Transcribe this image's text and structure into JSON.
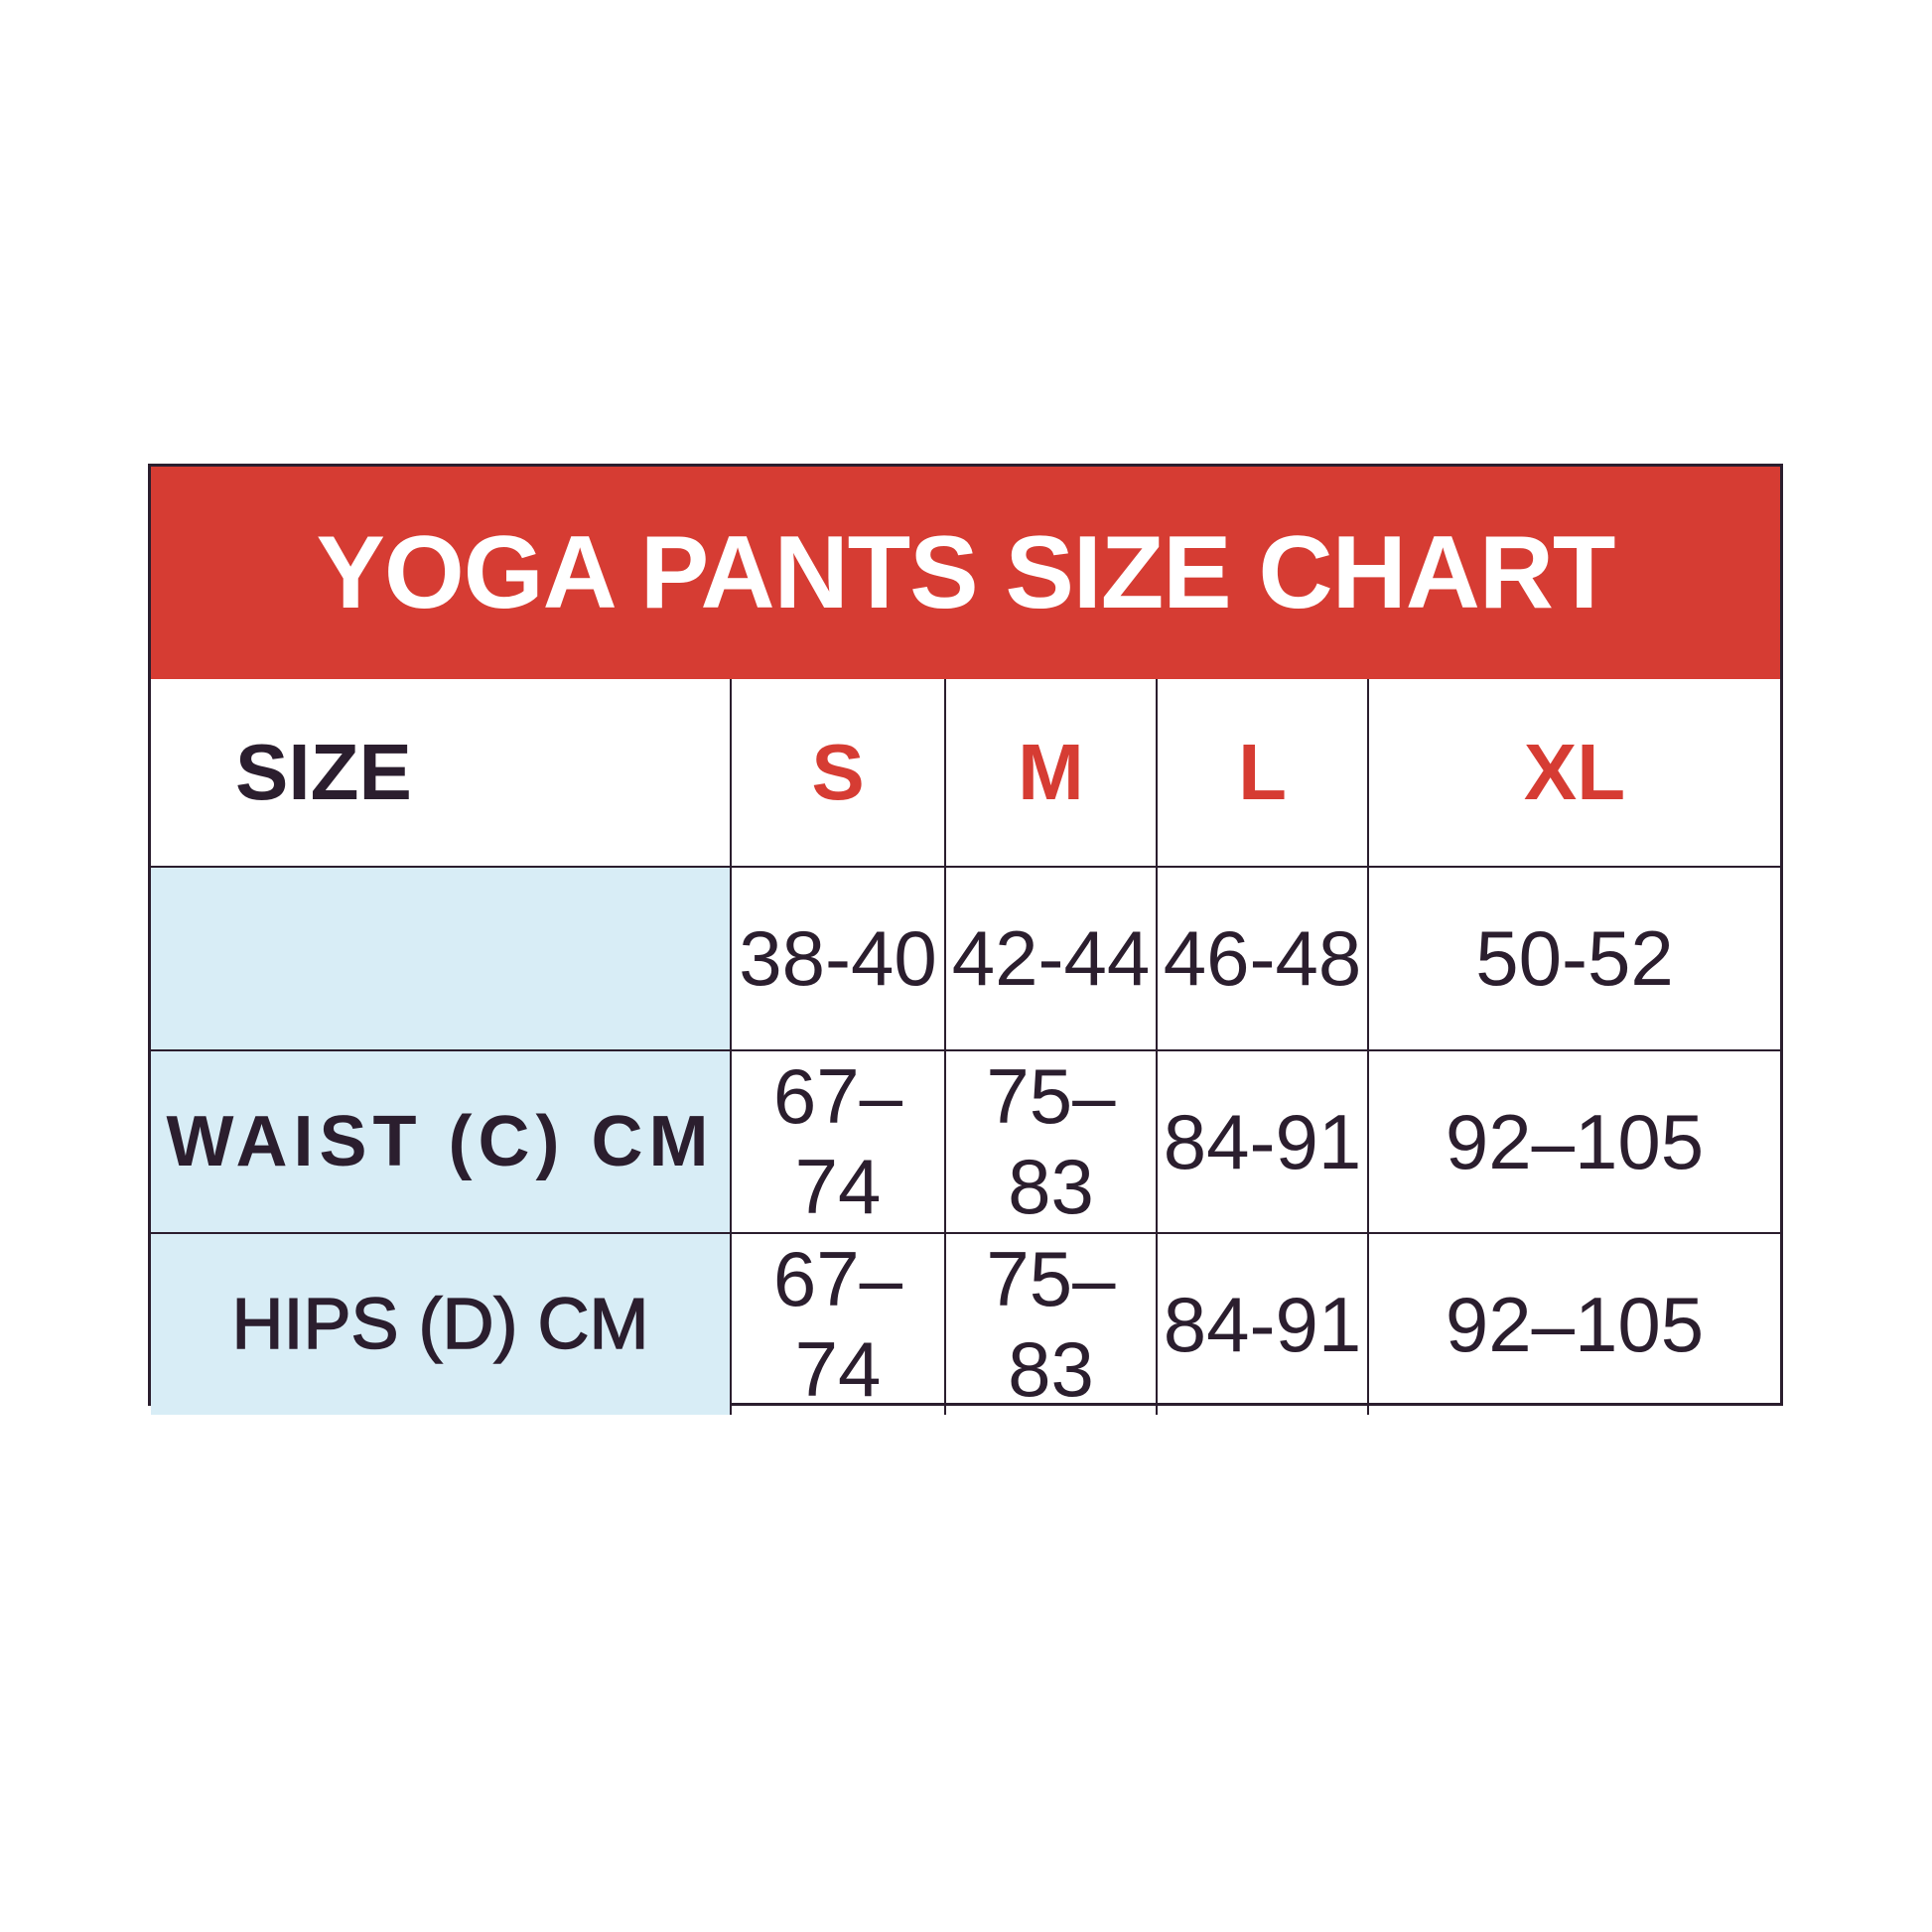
{
  "title": "YOGA PANTS SIZE CHART",
  "colors": {
    "header_bg": "#d63c33",
    "size_text": "#d63c33",
    "label_bg": "#d8edf6",
    "text": "#2b1e2e"
  },
  "header": {
    "label": "SIZE",
    "sizes": [
      "S",
      "M",
      "L",
      "XL"
    ]
  },
  "rows": [
    {
      "label": "",
      "values": [
        "38-40",
        "42-44",
        "46-48",
        "50-52"
      ]
    },
    {
      "label": "WAIST (C) CM",
      "values": [
        "67–74",
        "75–83",
        "84-91",
        "92–105"
      ]
    },
    {
      "label": "HIPS (D) CM",
      "values": [
        "67–74",
        "75–83",
        "84-91",
        "92–105"
      ]
    }
  ]
}
